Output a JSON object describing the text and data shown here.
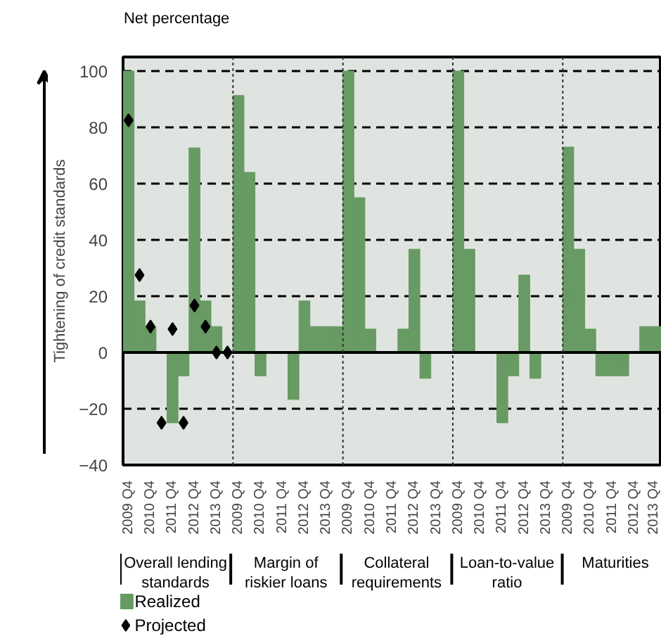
{
  "chart_data": {
    "type": "bar",
    "title": "Net percentage",
    "ylabel": "Tightening of credit standards",
    "categories": [
      "2009 Q4",
      null,
      "2010 Q4",
      null,
      "2011 Q4",
      null,
      "2012 Q4",
      null,
      "2013 Q4",
      null,
      "2009 Q4",
      null,
      "2010 Q4",
      null,
      "2011 Q4",
      null,
      "2012 Q4",
      null,
      "2013 Q4",
      null,
      "2009 Q4",
      null,
      "2010 Q4",
      null,
      "2011 Q4",
      null,
      "2012 Q4",
      null,
      "2013 Q4",
      null,
      "2009 Q4",
      null,
      "2010 Q4",
      null,
      "2011 Q4",
      null,
      "2012 Q4",
      null,
      "2013 Q4",
      null,
      "2009 Q4",
      null,
      "2010 Q4",
      null,
      "2011 Q4",
      null,
      "2012 Q4",
      null,
      "2013 Q4"
    ],
    "annotations": [
      "Overall lending standards",
      "Margin of riskier loans",
      "Collateral requirements",
      "Loan-to-value ratio",
      "Maturities"
    ],
    "series": [
      {
        "name": "Realized",
        "color": "#679b63",
        "values": [
          100,
          18.3,
          9.2,
          0,
          -25,
          -8.3,
          72.7,
          18.3,
          9.2,
          0,
          91.3,
          64,
          -8.3,
          0,
          0,
          -16.7,
          18.3,
          9.2,
          9.2,
          9.2,
          100,
          55,
          8.3,
          0,
          0,
          8.3,
          36.7,
          -9.2,
          0,
          0,
          100,
          36.7,
          0,
          0,
          -25,
          -8.3,
          27.5,
          -9.2,
          0,
          0,
          73,
          36.7,
          8.3,
          -8.3,
          -8.3,
          -8.3,
          0,
          9.2,
          9.2
        ]
      },
      {
        "name": "Projected",
        "type": "scatter",
        "color": "#000000",
        "marker": "diamond",
        "values": [
          82.5,
          27.5,
          9.2,
          -25,
          8.3,
          -25,
          16.7,
          9.2,
          0,
          0,
          null,
          null,
          null,
          null,
          null,
          null,
          null,
          null,
          null,
          null,
          null,
          null,
          null,
          null,
          null,
          null,
          null,
          null,
          null,
          null,
          null,
          null,
          null,
          null,
          null,
          null,
          null,
          null,
          null,
          null,
          null,
          null,
          null,
          null,
          null,
          null,
          null,
          null,
          null
        ]
      }
    ],
    "ylim": [
      -40,
      105
    ],
    "yticks": [
      {
        "value": -40,
        "label": "−40"
      },
      {
        "value": -20,
        "label": "−20"
      },
      0,
      20,
      40,
      60,
      80,
      100
    ],
    "grid": "y",
    "legend": "bottom left"
  }
}
